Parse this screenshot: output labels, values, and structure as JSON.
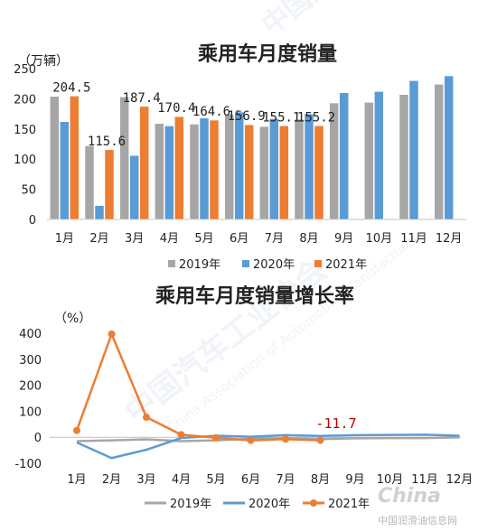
{
  "chart_data": [
    {
      "type": "bar",
      "title": "乘用车月度销量",
      "ylabel": "（万辆）",
      "ylim": [
        0,
        250
      ],
      "yticks": [
        0,
        50,
        100,
        150,
        200,
        250
      ],
      "categories": [
        "1月",
        "2月",
        "3月",
        "4月",
        "5月",
        "6月",
        "7月",
        "8月",
        "9月",
        "10月",
        "11月",
        "12月"
      ],
      "series": [
        {
          "name": "2019年",
          "color": "#a6a6a6",
          "values": [
            204,
            122,
            203,
            159,
            158,
            174,
            154,
            166,
            193,
            194,
            207,
            224
          ]
        },
        {
          "name": "2020年",
          "color": "#5b9bd5",
          "values": [
            162,
            23,
            106,
            155,
            168,
            178,
            167,
            175,
            210,
            212,
            230,
            238
          ]
        },
        {
          "name": "2021年",
          "color": "#ed7d31",
          "values": [
            204.5,
            115.6,
            187.4,
            170.4,
            164.6,
            156.9,
            155.1,
            155.2,
            null,
            null,
            null,
            null
          ]
        }
      ],
      "data_labels": [
        {
          "category_index": 0,
          "text": "204.5"
        },
        {
          "category_index": 1,
          "text": "115.6"
        },
        {
          "category_index": 2,
          "text": "187.4"
        },
        {
          "category_index": 3,
          "text": "170.4"
        },
        {
          "category_index": 4,
          "text": "164.6"
        },
        {
          "category_index": 5,
          "text": "156.9"
        },
        {
          "category_index": 6,
          "text": "155.1"
        },
        {
          "category_index": 7,
          "text": "155.2"
        }
      ],
      "legend_position": "bottom"
    },
    {
      "type": "line",
      "title": "乘用车月度销量增长率",
      "ylabel": "（%）",
      "ylim": [
        -100,
        400
      ],
      "yticks": [
        -100,
        0,
        100,
        200,
        300,
        400
      ],
      "categories": [
        "1月",
        "2月",
        "3月",
        "4月",
        "5月",
        "6月",
        "7月",
        "8月",
        "9月",
        "10月",
        "11月",
        "12月"
      ],
      "series": [
        {
          "name": "2019年",
          "color": "#a6a6a6",
          "marker": false,
          "values": [
            -15,
            -12,
            -8,
            -15,
            -12,
            -6,
            -4,
            -7,
            -4,
            -3,
            -3,
            0
          ]
        },
        {
          "name": "2020年",
          "color": "#5b9bd5",
          "marker": false,
          "values": [
            -20,
            -80,
            -48,
            -3,
            6,
            2,
            8,
            5,
            8,
            9,
            10,
            6
          ]
        },
        {
          "name": "2021年",
          "color": "#ed7d31",
          "marker": true,
          "values": [
            26,
            397,
            77,
            10,
            -2,
            -12,
            -7,
            -11.7,
            null,
            null,
            null,
            null
          ]
        }
      ],
      "annotation": {
        "category_index": 7,
        "text": "-11.7",
        "color": "#c00000"
      },
      "legend_position": "bottom"
    }
  ],
  "watermarks": [
    "中国汽车工业协会",
    "China Association of Automobile Manufacturers"
  ],
  "footer": {
    "logo_text": "China",
    "site_text": "中国润滑油信息网"
  }
}
